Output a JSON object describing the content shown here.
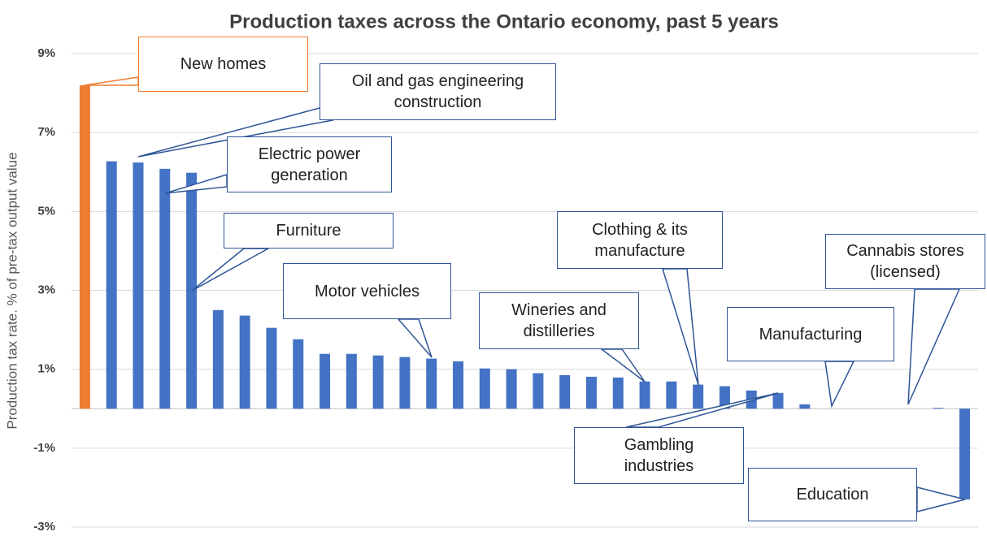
{
  "chart_data": {
    "type": "bar",
    "title": "Production taxes across the Ontario economy, past 5 years",
    "y_label": "Production tax rate. % of pre-tax output value",
    "categories": [
      null,
      null,
      null,
      null,
      null,
      null,
      null,
      null,
      null,
      null,
      null,
      null,
      null,
      null,
      null,
      null,
      null,
      null,
      null,
      null,
      null,
      null,
      null,
      null,
      null,
      null,
      null,
      null,
      null,
      null,
      null,
      null,
      null,
      null
    ],
    "values": [
      8.2,
      6.27,
      6.24,
      6.08,
      5.98,
      2.5,
      2.36,
      2.05,
      1.76,
      1.39,
      1.39,
      1.35,
      1.31,
      1.27,
      1.2,
      1.02,
      1.0,
      0.9,
      0.85,
      0.81,
      0.79,
      0.69,
      0.69,
      0.61,
      0.57,
      0.46,
      0.4,
      0.11,
      0,
      0,
      0,
      0,
      0.02,
      -2.3
    ],
    "colors": [
      "#ed7d31",
      "#4472c4",
      "#4472c4",
      "#4472c4",
      "#4472c4",
      "#4472c4",
      "#4472c4",
      "#4472c4",
      "#4472c4",
      "#4472c4",
      "#4472c4",
      "#4472c4",
      "#4472c4",
      "#4472c4",
      "#4472c4",
      "#4472c4",
      "#4472c4",
      "#4472c4",
      "#4472c4",
      "#4472c4",
      "#4472c4",
      "#4472c4",
      "#4472c4",
      "#4472c4",
      "#4472c4",
      "#4472c4",
      "#4472c4",
      "#4472c4",
      "#4472c4",
      "#4472c4",
      "#4472c4",
      "#4472c4",
      "#4472c4",
      "#4472c4"
    ],
    "ylim": [
      -3,
      9
    ],
    "yticks": [
      {
        "value": -3,
        "label": "-3%"
      },
      {
        "value": -1,
        "label": "-1%"
      },
      {
        "value": 1,
        "label": "1%"
      },
      {
        "value": 3,
        "label": "3%"
      },
      {
        "value": 5,
        "label": "5%"
      },
      {
        "value": 7,
        "label": "7%"
      },
      {
        "value": 9,
        "label": "9%"
      }
    ],
    "grid": true,
    "annotations": [
      "New homes",
      "Oil and gas engineering construction",
      "Electric power generation",
      "Furniture",
      "Motor vehicles",
      "Wineries and distilleries",
      "Clothing & its manufacture",
      "Manufacturing",
      "Cannabis stores (licensed)",
      "Gambling industries",
      "Education"
    ]
  }
}
